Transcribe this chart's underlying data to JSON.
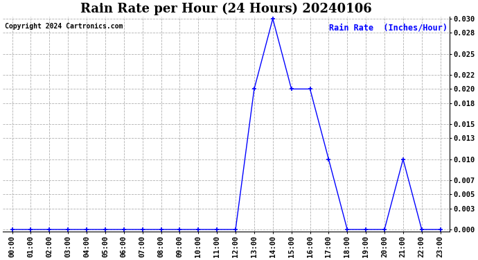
{
  "title": "Rain Rate per Hour (24 Hours) 20240106",
  "copyright_text": "Copyright 2024 Cartronics.com",
  "legend_label": "Rain Rate  (Inches/Hour)",
  "x_labels": [
    "00:00",
    "01:00",
    "02:00",
    "03:00",
    "04:00",
    "05:00",
    "06:00",
    "07:00",
    "08:00",
    "09:00",
    "10:00",
    "11:00",
    "12:00",
    "13:00",
    "14:00",
    "15:00",
    "16:00",
    "17:00",
    "18:00",
    "19:00",
    "20:00",
    "21:00",
    "22:00",
    "23:00"
  ],
  "hours": [
    0,
    1,
    2,
    3,
    4,
    5,
    6,
    7,
    8,
    9,
    10,
    11,
    12,
    13,
    14,
    15,
    16,
    17,
    18,
    19,
    20,
    21,
    22,
    23
  ],
  "values": [
    0.0,
    0.0,
    0.0,
    0.0,
    0.0,
    0.0,
    0.0,
    0.0,
    0.0,
    0.0,
    0.0,
    0.0,
    0.0,
    0.02,
    0.03,
    0.02,
    0.02,
    0.01,
    0.0,
    0.0,
    0.0,
    0.01,
    0.0,
    0.0
  ],
  "line_color": "blue",
  "marker": "+",
  "marker_size": 5,
  "ylim": [
    0.0,
    0.03
  ],
  "yticks": [
    0.0,
    0.003,
    0.005,
    0.007,
    0.01,
    0.013,
    0.015,
    0.018,
    0.02,
    0.022,
    0.025,
    0.028,
    0.03
  ],
  "bg_color": "#ffffff",
  "plot_bg_color": "#ffffff",
  "grid_color": "#b0b0b0",
  "title_fontsize": 13,
  "label_fontsize": 7.5,
  "copyright_fontsize": 7,
  "legend_fontsize": 8.5,
  "line_width": 1.0
}
